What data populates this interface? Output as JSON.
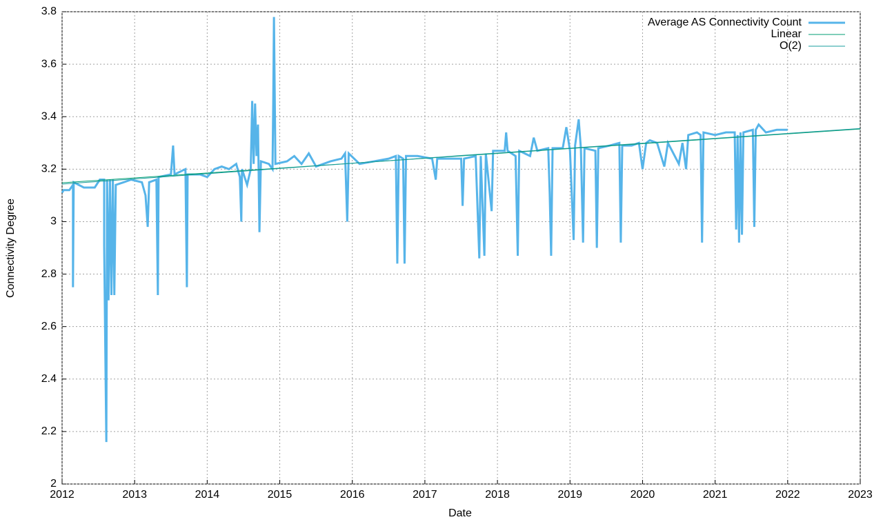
{
  "chart_data": {
    "type": "line",
    "xlabel": "Date",
    "ylabel": "Connectivity Degree",
    "xlim": [
      2012,
      2023
    ],
    "xticks": [
      2012,
      2013,
      2014,
      2015,
      2016,
      2017,
      2018,
      2019,
      2020,
      2021,
      2022,
      2023
    ],
    "ylim": [
      2,
      3.8
    ],
    "yticks": [
      2,
      2.2,
      2.4,
      2.6,
      2.8,
      3,
      3.2,
      3.4,
      3.6,
      3.8
    ],
    "grid": true,
    "legend": "top-right",
    "series": [
      {
        "name": "Average AS Connectivity Count",
        "color": "#56b4e9",
        "width": 3,
        "x": [
          2012.0,
          2012.02,
          2012.1,
          2012.15,
          2012.15,
          2012.16,
          2012.3,
          2012.45,
          2012.52,
          2012.58,
          2012.58,
          2012.6,
          2012.61,
          2012.62,
          2012.64,
          2012.66,
          2012.68,
          2012.7,
          2012.72,
          2012.74,
          2012.85,
          2012.95,
          2013.1,
          2013.15,
          2013.18,
          2013.2,
          2013.3,
          2013.32,
          2013.33,
          2013.5,
          2013.53,
          2013.55,
          2013.7,
          2013.72,
          2013.73,
          2013.9,
          2014.0,
          2014.1,
          2014.2,
          2014.3,
          2014.4,
          2014.45,
          2014.47,
          2014.48,
          2014.55,
          2014.6,
          2014.62,
          2014.64,
          2014.66,
          2014.68,
          2014.7,
          2014.72,
          2014.74,
          2014.85,
          2014.9,
          2014.91,
          2014.92,
          2014.94,
          2015.1,
          2015.2,
          2015.3,
          2015.4,
          2015.5,
          2015.7,
          2015.85,
          2015.9,
          2015.93,
          2015.95,
          2016.1,
          2016.3,
          2016.5,
          2016.6,
          2016.62,
          2016.64,
          2016.7,
          2016.72,
          2016.74,
          2016.9,
          2017.1,
          2017.15,
          2017.17,
          2017.35,
          2017.5,
          2017.52,
          2017.54,
          2017.7,
          2017.75,
          2017.77,
          2017.82,
          2017.84,
          2017.92,
          2017.94,
          2018.1,
          2018.12,
          2018.14,
          2018.25,
          2018.28,
          2018.3,
          2018.45,
          2018.5,
          2018.55,
          2018.7,
          2018.72,
          2018.74,
          2018.76,
          2018.9,
          2018.95,
          2019.0,
          2019.05,
          2019.07,
          2019.12,
          2019.15,
          2019.18,
          2019.2,
          2019.35,
          2019.37,
          2019.39,
          2019.55,
          2019.68,
          2019.7,
          2019.72,
          2019.85,
          2019.95,
          2020.0,
          2020.05,
          2020.1,
          2020.2,
          2020.3,
          2020.35,
          2020.5,
          2020.55,
          2020.6,
          2020.63,
          2020.75,
          2020.8,
          2020.82,
          2020.84,
          2021.0,
          2021.15,
          2021.27,
          2021.29,
          2021.31,
          2021.33,
          2021.35,
          2021.37,
          2021.39,
          2021.52,
          2021.54,
          2021.56,
          2021.6,
          2021.7,
          2021.85,
          2022.0
        ],
        "values": [
          3.11,
          3.12,
          3.12,
          3.14,
          2.75,
          3.15,
          3.13,
          3.13,
          3.16,
          3.16,
          2.91,
          2.4,
          2.16,
          3.16,
          2.7,
          3.16,
          2.72,
          3.16,
          2.72,
          3.14,
          3.15,
          3.16,
          3.15,
          3.1,
          2.98,
          3.15,
          3.16,
          2.72,
          3.17,
          3.18,
          3.29,
          3.18,
          3.2,
          2.75,
          3.18,
          3.18,
          3.17,
          3.2,
          3.21,
          3.2,
          3.22,
          3.17,
          3.0,
          3.2,
          3.14,
          3.2,
          3.46,
          3.22,
          3.45,
          3.25,
          3.37,
          2.96,
          3.23,
          3.22,
          3.2,
          3.45,
          3.78,
          3.22,
          3.23,
          3.25,
          3.22,
          3.26,
          3.21,
          3.23,
          3.24,
          3.26,
          3.0,
          3.26,
          3.22,
          3.23,
          3.24,
          3.25,
          2.84,
          3.25,
          3.24,
          2.84,
          3.25,
          3.25,
          3.24,
          3.16,
          3.24,
          3.24,
          3.24,
          3.06,
          3.24,
          3.25,
          2.86,
          3.25,
          2.87,
          3.26,
          3.04,
          3.27,
          3.27,
          3.34,
          3.27,
          3.25,
          2.87,
          3.27,
          3.25,
          3.32,
          3.27,
          3.28,
          3.11,
          2.87,
          3.28,
          3.28,
          3.36,
          3.27,
          2.93,
          3.29,
          3.39,
          3.28,
          2.92,
          3.28,
          3.27,
          2.9,
          3.28,
          3.29,
          3.3,
          2.92,
          3.29,
          3.29,
          3.3,
          3.2,
          3.3,
          3.31,
          3.3,
          3.21,
          3.3,
          3.22,
          3.3,
          3.2,
          3.33,
          3.34,
          3.33,
          2.92,
          3.34,
          3.33,
          3.34,
          3.34,
          2.97,
          3.33,
          2.92,
          3.34,
          2.95,
          3.34,
          3.35,
          2.98,
          3.35,
          3.37,
          3.34,
          3.35,
          3.35
        ]
      },
      {
        "name": "Linear",
        "color": "#009e73",
        "width": 1,
        "x": [
          2012,
          2023
        ],
        "values": [
          3.148,
          3.353
        ]
      },
      {
        "name": "O(2)",
        "color": "#1a9c9c",
        "width": 1,
        "x": [
          2012,
          2017.5,
          2023
        ],
        "values": [
          3.143,
          3.252,
          3.355
        ]
      }
    ]
  }
}
